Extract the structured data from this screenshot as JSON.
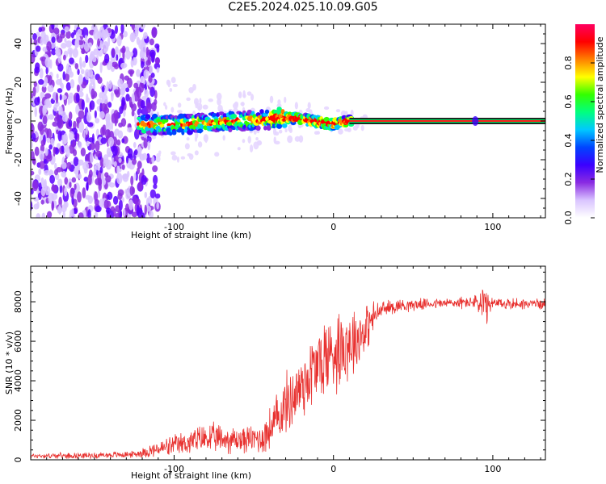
{
  "title": "C2E5.2024.025.10.09.G05",
  "chart_data": [
    {
      "type": "heatmap",
      "xlabel": "Height of straight line (km)",
      "ylabel": "Frequency (Hz)",
      "xlim": [
        -190,
        133
      ],
      "ylim": [
        -50,
        50
      ],
      "xticks": [
        -100,
        0,
        100
      ],
      "yticks": [
        -40,
        -20,
        0,
        20,
        40
      ],
      "colorbar": {
        "label": "Normalized spectral amplitude",
        "range": [
          0.0,
          1.0
        ],
        "ticks": [
          "0.0",
          "0.2",
          "0.4",
          "0.6",
          "0.8"
        ],
        "colors": [
          "#ffffff",
          "#d9c4ff",
          "#8a2be2",
          "#3b00ff",
          "#0044ff",
          "#00c8ff",
          "#00ff80",
          "#33ff00",
          "#ffff00",
          "#ff8000",
          "#ff0000",
          "#ff0060"
        ]
      },
      "signal_track": [
        {
          "x": -120,
          "y": -2
        },
        {
          "x": -100,
          "y": -2
        },
        {
          "x": -80,
          "y": -1
        },
        {
          "x": -60,
          "y": 0
        },
        {
          "x": -40,
          "y": 0.8
        },
        {
          "x": -32,
          "y": 2
        },
        {
          "x": -20,
          "y": 1
        },
        {
          "x": -10,
          "y": -0.5
        },
        {
          "x": 0,
          "y": -1.5
        },
        {
          "x": 10,
          "y": 0
        },
        {
          "x": 133,
          "y": 0
        }
      ],
      "noise_region": {
        "x_from": -190,
        "x_to": -120,
        "intensity_note": "high-noise"
      },
      "grid": false
    },
    {
      "type": "line",
      "xlabel": "Height of straight line (km)",
      "ylabel": "SNR (10 * v/v)",
      "xlim": [
        -190,
        133
      ],
      "ylim": [
        0,
        9800
      ],
      "xticks": [
        -100,
        0,
        100
      ],
      "yticks": [
        0,
        2000,
        4000,
        6000,
        8000
      ],
      "color": "#e8312f",
      "series": [
        {
          "points": [
            {
              "x": -190,
              "y": 200
            },
            {
              "x": -150,
              "y": 220
            },
            {
              "x": -125,
              "y": 280
            },
            {
              "x": -115,
              "y": 450
            },
            {
              "x": -100,
              "y": 700
            },
            {
              "x": -80,
              "y": 1100
            },
            {
              "x": -60,
              "y": 1000
            },
            {
              "x": -45,
              "y": 1100
            },
            {
              "x": -38,
              "y": 1700
            },
            {
              "x": -30,
              "y": 2800
            },
            {
              "x": -25,
              "y": 3200
            },
            {
              "x": -15,
              "y": 4300
            },
            {
              "x": -5,
              "y": 5200
            },
            {
              "x": 5,
              "y": 5800
            },
            {
              "x": 15,
              "y": 6200
            },
            {
              "x": 20,
              "y": 6600
            },
            {
              "x": 25,
              "y": 7200
            },
            {
              "x": 30,
              "y": 7600
            },
            {
              "x": 40,
              "y": 7800
            },
            {
              "x": 60,
              "y": 7900
            },
            {
              "x": 80,
              "y": 7950
            },
            {
              "x": 90,
              "y": 8000
            },
            {
              "x": 95,
              "y": 7600
            },
            {
              "x": 100,
              "y": 7900
            },
            {
              "x": 133,
              "y": 7900
            }
          ],
          "noise_amplitude": [
            {
              "x": -190,
              "a": 150
            },
            {
              "x": -125,
              "a": 200
            },
            {
              "x": -110,
              "a": 500
            },
            {
              "x": -80,
              "a": 900
            },
            {
              "x": -50,
              "a": 800
            },
            {
              "x": -35,
              "a": 1600
            },
            {
              "x": -20,
              "a": 2200
            },
            {
              "x": -5,
              "a": 2600
            },
            {
              "x": 10,
              "a": 2400
            },
            {
              "x": 20,
              "a": 1500
            },
            {
              "x": 30,
              "a": 500
            },
            {
              "x": 60,
              "a": 300
            },
            {
              "x": 90,
              "a": 400
            },
            {
              "x": 94,
              "a": 2000
            },
            {
              "x": 98,
              "a": 400
            },
            {
              "x": 133,
              "a": 300
            }
          ]
        }
      ]
    }
  ]
}
